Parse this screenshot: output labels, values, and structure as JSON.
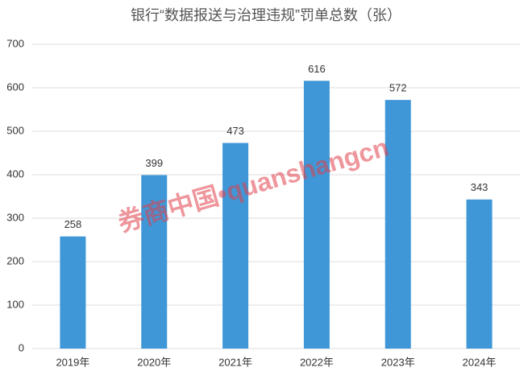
{
  "chart_data": {
    "type": "bar",
    "title": "银行“数据报送与治理违规”罚单总数（张）",
    "categories": [
      "2019年",
      "2020年",
      "2021年",
      "2022年",
      "2023年",
      "2024年"
    ],
    "values": [
      258,
      399,
      473,
      616,
      572,
      343
    ],
    "color": "#3f97d8",
    "ylim": [
      0,
      700
    ],
    "yticks": [
      0,
      100,
      200,
      300,
      400,
      500,
      600,
      700
    ],
    "grid": true,
    "watermark": "券商中国•quanshangcn"
  }
}
